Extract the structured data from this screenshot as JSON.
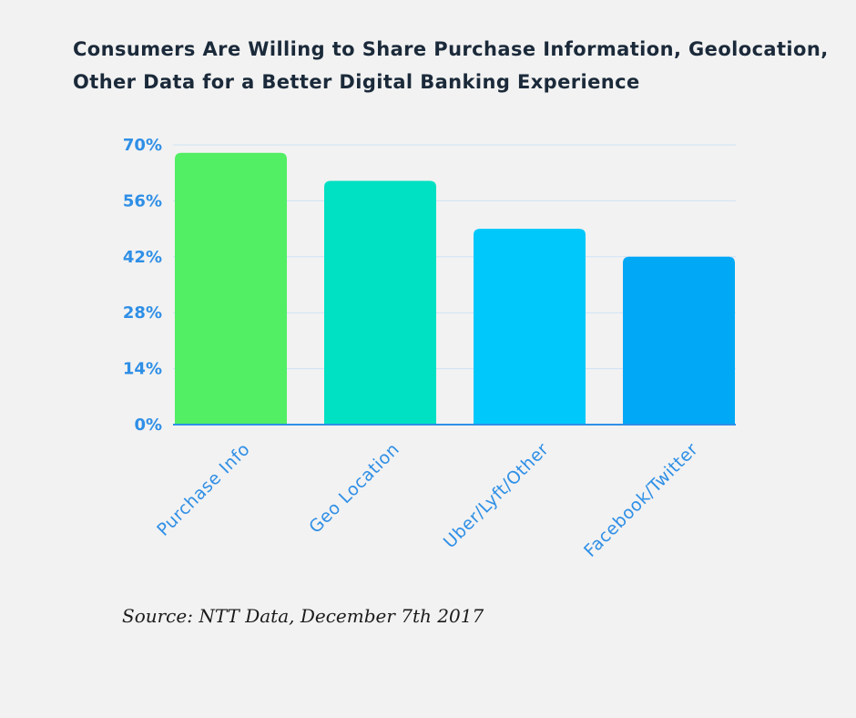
{
  "chart_data": {
    "type": "bar",
    "title_lines": [
      "Consumers Are Willing to Share Purchase Information, Geolocation,",
      "Other Data for a Better Digital Banking Experience"
    ],
    "categories": [
      "Purchase Info",
      "Geo Location",
      "Uber/Lyft/Other",
      "Facebook/Twitter"
    ],
    "values": [
      68,
      61,
      49,
      42
    ],
    "unit": "%",
    "ylim": [
      0,
      70
    ],
    "yticks": [
      "0%",
      "14%",
      "28%",
      "42%",
      "56%",
      "70%"
    ],
    "ytick_values": [
      0,
      14,
      28,
      42,
      56,
      70
    ],
    "xlabel": "",
    "ylabel": "",
    "grid": true,
    "legend": "none",
    "colors": [
      "#52ee64",
      "#00e0c2",
      "#00c8fa",
      "#00a8f5"
    ],
    "axis_color": "#2f8fe6",
    "grid_color": "#cfe1f4",
    "source": "Source: NTT Data, December 7th 2017"
  }
}
